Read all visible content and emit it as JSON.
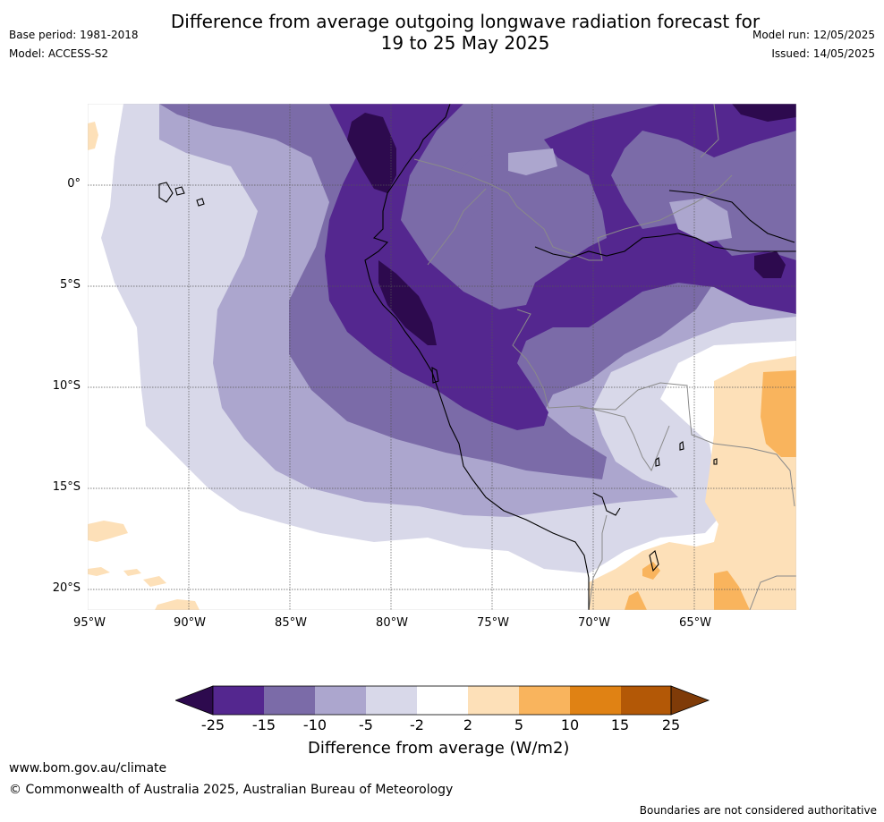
{
  "title_line1": "Difference from average outgoing longwave radiation forecast for",
  "title_line2": "19 to 25 May 2025",
  "base_period": "Base period: 1981-2018",
  "model": "Model: ACCESS-S2",
  "model_run": "Model run: 12/05/2025",
  "issued": "Issued: 14/05/2025",
  "lat_ticks": [
    "0°",
    "5°S",
    "10°S",
    "15°S",
    "20°S"
  ],
  "lon_ticks": [
    "95°W",
    "90°W",
    "85°W",
    "80°W",
    "75°W",
    "70°W",
    "65°W"
  ],
  "colorbar": {
    "ticks": [
      "-25",
      "-15",
      "-10",
      "-5",
      "-2",
      "2",
      "5",
      "10",
      "15",
      "25"
    ],
    "colors": [
      "#2d0a4e",
      "#54278f",
      "#7b6ba8",
      "#aca6ce",
      "#d8d8e9",
      "#ffffff",
      "#fde0b8",
      "#f9b45d",
      "#e08214",
      "#b35806",
      "#7f3b08"
    ],
    "label": "Difference from average (W/m2)"
  },
  "footer_url": "www.bom.gov.au/climate",
  "footer_copyright": "© Commonwealth of Australia 2025, Australian Bureau of Meteorology",
  "footer_note": "Boundaries are not considered authoritative"
}
